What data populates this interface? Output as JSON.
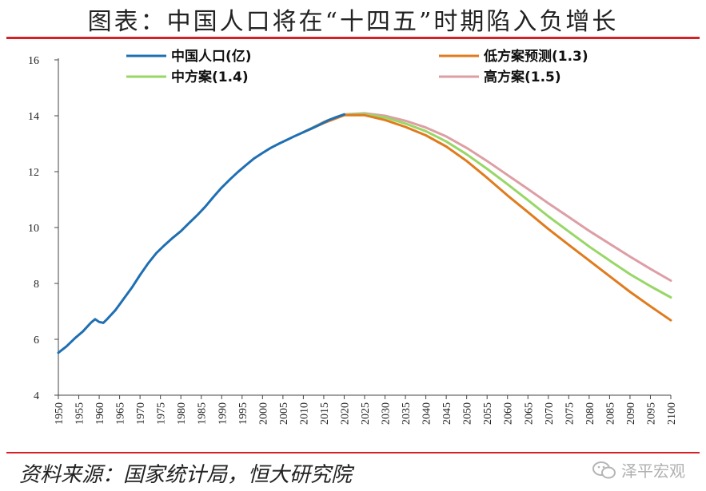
{
  "title": "图表：中国人口将在“十四五”时期陷入负增长",
  "source": "资料来源：国家统计局，恒大研究院",
  "brand": "泽平宏观",
  "brand_icon": "wechat-icon",
  "colors": {
    "actual": "#1f6fb3",
    "low": "#e07b1e",
    "mid": "#98d766",
    "high": "#dd9ea4",
    "accent_rule": "#d71f26"
  },
  "chart_data": {
    "type": "line",
    "title": "",
    "xlabel": "",
    "ylabel": "",
    "xlim": [
      1950,
      2100
    ],
    "ylim": [
      4,
      16
    ],
    "yticks": [
      4,
      6,
      8,
      10,
      12,
      14,
      16
    ],
    "xticks": [
      1950,
      1955,
      1960,
      1965,
      1970,
      1975,
      1980,
      1985,
      1990,
      1995,
      2000,
      2005,
      2010,
      2015,
      2020,
      2025,
      2030,
      2035,
      2040,
      2045,
      2050,
      2055,
      2060,
      2065,
      2070,
      2075,
      2080,
      2085,
      2090,
      2095,
      2100
    ],
    "legend_position": "top",
    "series": [
      {
        "name": "中国人口(亿)",
        "color": "#1f6fb3",
        "x": [
          1950,
          1952,
          1954,
          1956,
          1958,
          1959,
          1960,
          1961,
          1962,
          1964,
          1966,
          1968,
          1970,
          1972,
          1974,
          1976,
          1978,
          1980,
          1982,
          1984,
          1986,
          1988,
          1990,
          1992,
          1994,
          1996,
          1998,
          2000,
          2002,
          2004,
          2006,
          2008,
          2010,
          2012,
          2014,
          2016,
          2018,
          2020
        ],
        "y": [
          5.52,
          5.75,
          6.03,
          6.28,
          6.6,
          6.72,
          6.62,
          6.59,
          6.73,
          7.05,
          7.45,
          7.85,
          8.3,
          8.72,
          9.09,
          9.37,
          9.63,
          9.87,
          10.16,
          10.44,
          10.75,
          11.1,
          11.43,
          11.72,
          11.99,
          12.24,
          12.48,
          12.67,
          12.85,
          13.0,
          13.14,
          13.28,
          13.41,
          13.54,
          13.68,
          13.83,
          13.95,
          14.05
        ]
      },
      {
        "name": "低方案预测(1.3)",
        "color": "#e07b1e",
        "x": [
          2010,
          2015,
          2020,
          2025,
          2030,
          2035,
          2040,
          2045,
          2050,
          2055,
          2060,
          2065,
          2070,
          2075,
          2080,
          2085,
          2090,
          2095,
          2100
        ],
        "y": [
          13.41,
          13.74,
          14.02,
          14.02,
          13.85,
          13.6,
          13.3,
          12.9,
          12.38,
          11.78,
          11.15,
          10.55,
          9.95,
          9.38,
          8.82,
          8.26,
          7.7,
          7.18,
          6.68
        ]
      },
      {
        "name": "中方案(1.4)",
        "color": "#98d766",
        "x": [
          2010,
          2015,
          2020,
          2025,
          2030,
          2035,
          2040,
          2045,
          2050,
          2055,
          2060,
          2065,
          2070,
          2075,
          2080,
          2085,
          2090,
          2095,
          2100
        ],
        "y": [
          13.41,
          13.76,
          14.04,
          14.06,
          13.94,
          13.72,
          13.45,
          13.08,
          12.62,
          12.1,
          11.55,
          10.98,
          10.4,
          9.86,
          9.32,
          8.82,
          8.33,
          7.9,
          7.5
        ]
      },
      {
        "name": "高方案(1.5)",
        "color": "#dd9ea4",
        "x": [
          2010,
          2015,
          2020,
          2025,
          2030,
          2035,
          2040,
          2045,
          2050,
          2055,
          2060,
          2065,
          2070,
          2075,
          2080,
          2085,
          2090,
          2095,
          2100
        ],
        "y": [
          13.41,
          13.78,
          14.05,
          14.09,
          14.0,
          13.82,
          13.58,
          13.26,
          12.85,
          12.38,
          11.88,
          11.38,
          10.87,
          10.38,
          9.88,
          9.42,
          8.96,
          8.52,
          8.1
        ]
      }
    ]
  }
}
